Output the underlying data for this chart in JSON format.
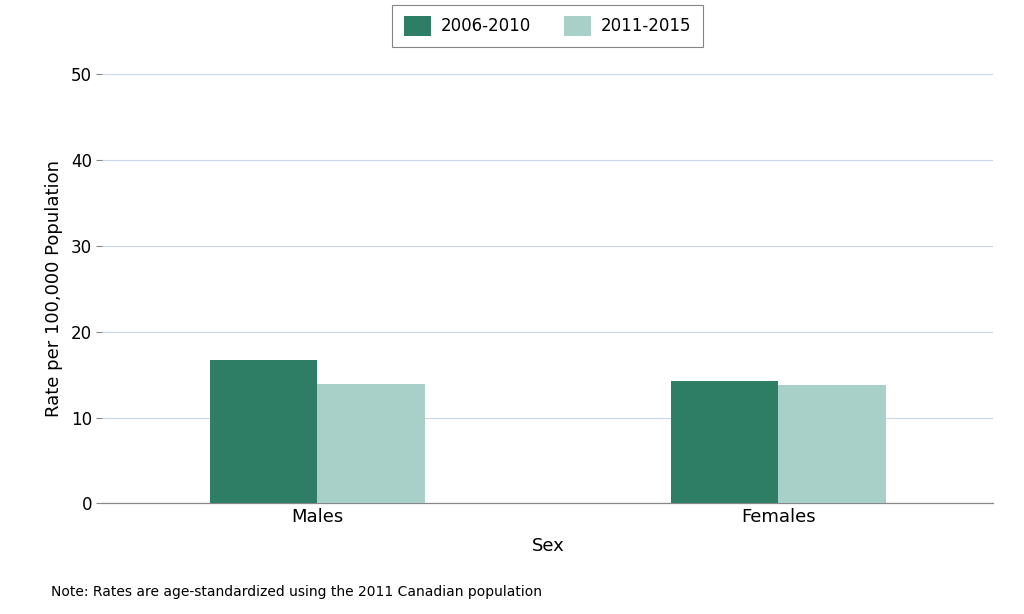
{
  "categories": [
    "Males",
    "Females"
  ],
  "values_2006_2010": [
    16.7,
    14.3
  ],
  "values_2011_2015": [
    13.9,
    13.8
  ],
  "color_2006_2010": "#2e7d65",
  "color_2011_2015": "#a8d0c8",
  "ylabel": "Rate per 100,000 Population",
  "xlabel": "Sex",
  "ylim": [
    0,
    50
  ],
  "yticks": [
    0,
    10,
    20,
    30,
    40,
    50
  ],
  "legend_labels": [
    "2006-2010",
    "2011-2015"
  ],
  "note": "Note: Rates are age-standardized using the 2011 Canadian population",
  "bar_width": 0.35,
  "background_color": "#ffffff",
  "grid_color": "#c8d8e8",
  "label_fontsize": 13,
  "tick_fontsize": 12,
  "legend_fontsize": 12,
  "note_fontsize": 10
}
